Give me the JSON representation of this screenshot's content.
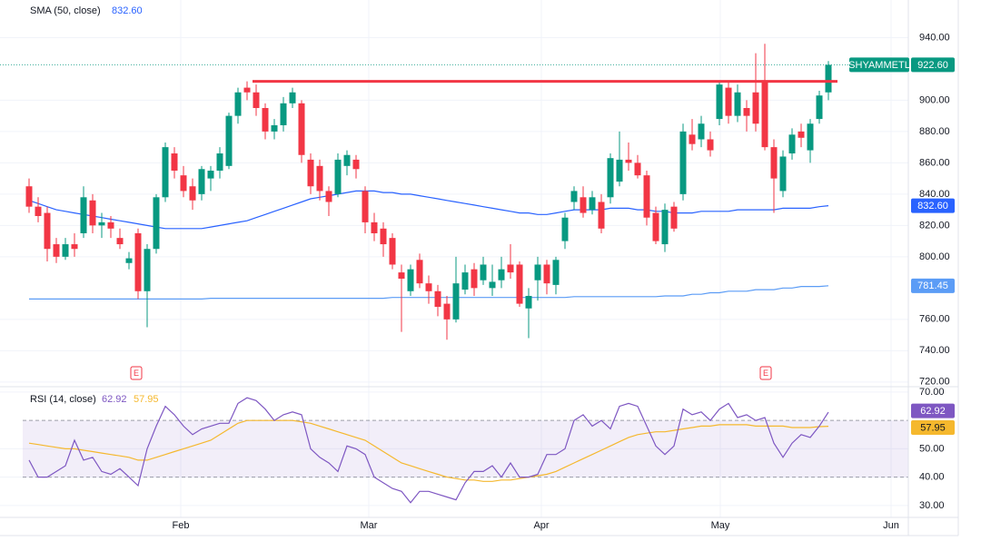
{
  "chart_data": {
    "type": "candlestick",
    "symbol": "SHYAMMETL",
    "last_price_label": "922.60",
    "up_color": "#089981",
    "down_color": "#f23645",
    "xlim": [
      -3.2,
      96.8
    ],
    "xticks": [
      {
        "value": 16.7,
        "label": "Feb"
      },
      {
        "value": 37.4,
        "label": "Mar"
      },
      {
        "value": 56.4,
        "label": "Apr"
      },
      {
        "value": 76.1,
        "label": "May"
      },
      {
        "value": 94.9,
        "label": "Jun"
      }
    ],
    "ylim": [
      717,
      964
    ],
    "yticks": [
      {
        "value": 940,
        "label": "940.00"
      },
      {
        "value": 900,
        "label": "900.00"
      },
      {
        "value": 880,
        "label": "880.00"
      },
      {
        "value": 860,
        "label": "860.00"
      },
      {
        "value": 840,
        "label": "840.00"
      },
      {
        "value": 820,
        "label": "820.00"
      },
      {
        "value": 800,
        "label": "800.00"
      },
      {
        "value": 760,
        "label": "760.00"
      },
      {
        "value": 740,
        "label": "740.00"
      },
      {
        "value": 720,
        "label": "720.00"
      }
    ],
    "grid": true,
    "open": [
      845,
      832,
      828,
      808,
      800,
      808,
      815,
      836,
      820,
      822,
      812,
      796,
      815,
      778,
      805,
      838,
      866,
      852,
      845,
      840,
      850,
      855,
      858,
      890,
      908,
      905,
      895,
      880,
      884,
      898,
      898,
      862,
      858,
      842,
      840,
      858,
      862,
      842,
      822,
      818,
      812,
      790,
      778,
      798,
      783,
      778,
      770,
      760,
      779,
      792,
      785,
      780,
      785,
      795,
      795,
      767,
      785,
      795,
      782,
      810,
      835,
      838,
      830,
      835,
      838,
      848,
      862,
      860,
      852,
      828,
      808,
      832,
      840,
      878,
      875,
      875,
      888,
      908,
      890,
      895,
      905,
      912,
      870,
      842,
      866,
      880,
      868,
      888,
      905
    ],
    "high": [
      850,
      838,
      832,
      812,
      812,
      815,
      845,
      840,
      828,
      826,
      818,
      803,
      818,
      808,
      840,
      873,
      870,
      858,
      850,
      858,
      858,
      870,
      892,
      908,
      912,
      910,
      898,
      888,
      902,
      908,
      900,
      866,
      862,
      845,
      866,
      868,
      865,
      845,
      828,
      822,
      815,
      795,
      795,
      802,
      788,
      782,
      775,
      800,
      795,
      796,
      800,
      795,
      800,
      808,
      797,
      780,
      800,
      798,
      800,
      828,
      845,
      845,
      842,
      840,
      866,
      880,
      873,
      865,
      855,
      832,
      834,
      835,
      885,
      888,
      890,
      880,
      912,
      912,
      910,
      900,
      930,
      936,
      875,
      868,
      882,
      885,
      888,
      906,
      925
    ],
    "low": [
      828,
      822,
      797,
      796,
      798,
      800,
      812,
      815,
      812,
      812,
      805,
      792,
      773,
      755,
      802,
      835,
      850,
      838,
      830,
      836,
      842,
      850,
      856,
      885,
      900,
      890,
      875,
      875,
      880,
      895,
      860,
      840,
      836,
      826,
      838,
      852,
      850,
      815,
      810,
      800,
      792,
      752,
      775,
      780,
      770,
      762,
      747,
      758,
      776,
      775,
      782,
      775,
      780,
      786,
      768,
      748,
      772,
      776,
      776,
      805,
      830,
      825,
      827,
      815,
      834,
      845,
      855,
      850,
      820,
      808,
      803,
      816,
      836,
      868,
      870,
      864,
      884,
      885,
      886,
      880,
      880,
      868,
      828,
      838,
      862,
      870,
      860,
      885,
      900
    ],
    "close": [
      832,
      826,
      805,
      800,
      808,
      805,
      838,
      820,
      822,
      818,
      808,
      799,
      778,
      805,
      838,
      870,
      855,
      842,
      836,
      856,
      855,
      866,
      890,
      905,
      905,
      895,
      880,
      884,
      898,
      905,
      865,
      845,
      842,
      835,
      862,
      865,
      856,
      822,
      815,
      808,
      795,
      786,
      792,
      783,
      778,
      768,
      760,
      783,
      790,
      780,
      795,
      784,
      792,
      790,
      770,
      775,
      795,
      783,
      798,
      825,
      842,
      828,
      838,
      818,
      863,
      862,
      860,
      852,
      825,
      810,
      830,
      818,
      880,
      872,
      885,
      868,
      910,
      890,
      905,
      890,
      885,
      870,
      850,
      864,
      878,
      876,
      885,
      903,
      922.6
    ],
    "overlays": [
      {
        "name": "SMA (50, close)",
        "value_label": "832.60",
        "color": "#2962ff",
        "values": [
          836,
          834,
          832,
          830,
          829,
          828,
          827,
          826,
          825,
          824,
          823,
          822,
          821,
          820,
          819,
          818,
          818,
          818,
          818,
          818,
          819,
          820,
          821,
          822,
          823,
          825,
          827,
          829,
          831,
          833,
          835,
          837,
          838,
          839,
          840,
          841,
          842,
          842,
          842,
          841,
          841,
          840,
          840,
          839,
          838,
          837,
          836,
          835,
          834,
          833,
          832,
          831,
          830,
          829,
          828,
          828,
          827,
          827,
          828,
          829,
          830,
          830,
          830,
          830,
          831,
          831,
          831,
          830,
          830,
          829,
          829,
          828,
          828,
          828,
          829,
          829,
          829,
          829,
          830,
          830,
          830,
          830,
          830,
          831,
          831,
          831,
          831,
          832,
          832.6
        ]
      },
      {
        "color": "#5b9cf6",
        "values": [
          773,
          773,
          773,
          773,
          773,
          773,
          773,
          773,
          773,
          773,
          773,
          773,
          773,
          773,
          773,
          773,
          773,
          773,
          773,
          773,
          773.5,
          773.5,
          773.5,
          773.5,
          773.5,
          773.5,
          773.5,
          773.5,
          773.5,
          773.5,
          773.5,
          773.5,
          773.5,
          773.5,
          773.5,
          773.5,
          773.5,
          773.5,
          773.5,
          773.5,
          774,
          774,
          774,
          774,
          774,
          774,
          774,
          774,
          774,
          774,
          774,
          774,
          774,
          774,
          774,
          774,
          774,
          774,
          774,
          774,
          774.5,
          774.5,
          774.5,
          774.5,
          774.5,
          774.5,
          774.5,
          774.5,
          774.5,
          774.5,
          775,
          775,
          775,
          776,
          776,
          777,
          777,
          778,
          778,
          778,
          779,
          779,
          779,
          780,
          780,
          781,
          781,
          781,
          781.45
        ]
      }
    ],
    "hline": {
      "value": 912,
      "from": 24.6,
      "to": 89,
      "color": "#f23645"
    },
    "events": [
      {
        "label": "E",
        "at": 11.8
      },
      {
        "label": "E",
        "at": 81.1
      }
    ],
    "rsi": {
      "name": "RSI (14, close)",
      "color": "#7e57c2",
      "values": [
        46,
        40,
        40,
        42,
        44,
        53,
        46,
        47,
        42,
        41,
        43,
        40,
        37,
        50,
        58,
        65,
        62,
        58,
        55,
        57,
        58,
        59,
        59,
        66,
        68,
        67,
        64,
        60,
        62,
        63,
        62,
        50,
        47,
        45,
        42,
        51,
        50,
        48,
        40,
        38,
        36,
        35,
        31,
        35,
        35,
        34,
        33,
        32,
        38,
        42,
        42,
        44,
        40,
        45,
        40,
        40,
        41,
        48,
        48,
        50,
        60,
        62,
        58,
        60,
        57,
        65,
        66,
        65,
        58,
        51,
        48,
        51,
        64,
        62,
        63,
        60,
        64,
        66,
        61,
        62,
        60,
        61,
        52,
        47,
        52,
        55,
        54,
        58,
        62.92
      ],
      "ma": {
        "color": "#f5b82e",
        "values": [
          52,
          51.5,
          51,
          50.5,
          50,
          50,
          49.5,
          49,
          48.5,
          48,
          47.5,
          47,
          46,
          46,
          47,
          48,
          49,
          50,
          51,
          52,
          53,
          55,
          57,
          59,
          60,
          60,
          60,
          60,
          60,
          60,
          59.5,
          59,
          58,
          57,
          56,
          55,
          54,
          53,
          51,
          49,
          47,
          45,
          44,
          43,
          42,
          41,
          40,
          39.5,
          39,
          39,
          38.5,
          38.5,
          39,
          39,
          39.5,
          40,
          40.5,
          41,
          42,
          43.5,
          45,
          46.5,
          48,
          49.5,
          51,
          52.5,
          54,
          55,
          55.5,
          56,
          56,
          56.5,
          57,
          57.5,
          58,
          58,
          58.5,
          58.5,
          58.5,
          58.5,
          58,
          58,
          58,
          58,
          57.5,
          57.5,
          57.5,
          57.8,
          57.95
        ]
      },
      "ylim": [
        25.8,
        71.9
      ],
      "yticks": [
        {
          "value": 70,
          "label": "70.00"
        },
        {
          "value": 50,
          "label": "50.00"
        },
        {
          "value": 40,
          "label": "40.00"
        },
        {
          "value": 30,
          "label": "30.00"
        }
      ],
      "band": [
        40,
        60
      ]
    }
  }
}
